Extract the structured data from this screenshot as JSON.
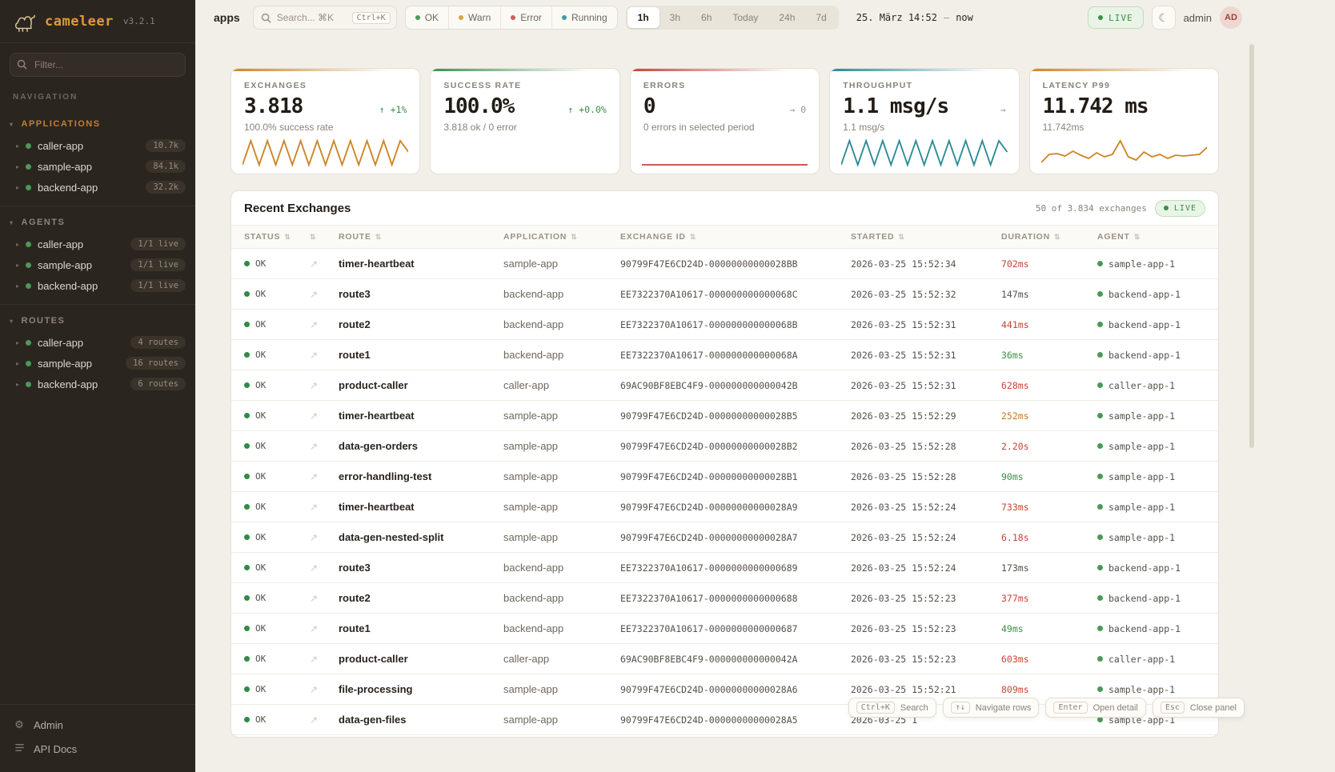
{
  "sidebar": {
    "logo": {
      "name": "cameleer",
      "version": "v3.2.1"
    },
    "filter_placeholder": "Filter...",
    "nav_label": "NAVIGATION",
    "sections": [
      {
        "label": "APPLICATIONS",
        "color": "#c08033",
        "items": [
          {
            "name": "caller-app",
            "badge": "10.7k"
          },
          {
            "name": "sample-app",
            "badge": "84.1k"
          },
          {
            "name": "backend-app",
            "badge": "32.2k"
          }
        ]
      },
      {
        "label": "AGENTS",
        "color": "#8d8479",
        "items": [
          {
            "name": "caller-app",
            "badge": "1/1 live"
          },
          {
            "name": "sample-app",
            "badge": "1/1 live"
          },
          {
            "name": "backend-app",
            "badge": "1/1 live"
          }
        ]
      },
      {
        "label": "ROUTES",
        "color": "#8d8479",
        "items": [
          {
            "name": "caller-app",
            "badge": "4 routes"
          },
          {
            "name": "sample-app",
            "badge": "16 routes"
          },
          {
            "name": "backend-app",
            "badge": "6 routes"
          }
        ]
      }
    ],
    "footer": [
      {
        "label": "Admin",
        "icon": "gear-icon"
      },
      {
        "label": "API Docs",
        "icon": "docs-icon"
      }
    ]
  },
  "topbar": {
    "title": "apps",
    "search": {
      "placeholder": "Search... ⌘K",
      "kbd": "Ctrl+K"
    },
    "status_filters": [
      {
        "label": "OK",
        "color": "#4a9a57"
      },
      {
        "label": "Warn",
        "color": "#d9a441"
      },
      {
        "label": "Error",
        "color": "#cc5f54"
      },
      {
        "label": "Running",
        "color": "#3f9ba8"
      }
    ],
    "time_ranges": [
      "1h",
      "3h",
      "6h",
      "Today",
      "24h",
      "7d"
    ],
    "active_range": "1h",
    "time_from": "25. März 14:52",
    "time_sep": "—",
    "time_to": "now",
    "live_label": "LIVE",
    "user": "admin",
    "avatar": "AD"
  },
  "cards": [
    {
      "label": "EXCHANGES",
      "value": "3.818",
      "delta": "↑ +1%",
      "delta_color": "green",
      "subtitle": "100.0% success rate",
      "accent": "#cd8425",
      "spark_color": "#cd8425",
      "spark": [
        34,
        4,
        34,
        4,
        34,
        4,
        34,
        4,
        34,
        4,
        34,
        4,
        34,
        4,
        34,
        4,
        34,
        4,
        34,
        4,
        18
      ]
    },
    {
      "label": "SUCCESS RATE",
      "value": "100.0%",
      "delta": "↑ +0.0%",
      "delta_color": "green",
      "subtitle": "3.818 ok / 0 error",
      "accent": "#3f8f4f",
      "spark_color": "",
      "spark": []
    },
    {
      "label": "ERRORS",
      "value": "0",
      "delta": "→ 0",
      "delta_color": "gray",
      "subtitle": "0 errors in selected period",
      "accent": "#c44536",
      "spark_color": "#c44536",
      "spark": [
        34,
        34
      ]
    },
    {
      "label": "THROUGHPUT",
      "value": "1.1 msg/s",
      "delta": "→",
      "delta_color": "gray",
      "subtitle": "1.1 msg/s",
      "accent": "#2a8a96",
      "spark_color": "#2a8a96",
      "spark": [
        34,
        4,
        34,
        4,
        34,
        4,
        34,
        4,
        34,
        4,
        34,
        4,
        34,
        4,
        34,
        4,
        34,
        4,
        34,
        4,
        18
      ]
    },
    {
      "label": "LATENCY P99",
      "value": "11.742 ms",
      "delta": "",
      "delta_color": "gray",
      "subtitle": "11.742ms",
      "accent": "#cd8425",
      "spark_color": "#cd8425",
      "spark": [
        31,
        21,
        20,
        23,
        17,
        22,
        26,
        19,
        24,
        21,
        4,
        24,
        28,
        18,
        24,
        21,
        26,
        22,
        23,
        22,
        21,
        12
      ]
    }
  ],
  "table": {
    "title": "Recent Exchanges",
    "meta": "50 of 3.834 exchanges",
    "live_label": "LIVE",
    "columns": [
      "STATUS",
      "",
      "ROUTE",
      "APPLICATION",
      "EXCHANGE ID",
      "STARTED",
      "DURATION",
      "AGENT"
    ],
    "rows": [
      {
        "status": "OK",
        "route": "timer-heartbeat",
        "application": "sample-app",
        "exchange_id": "90799F47E6CD24D-00000000000028BB",
        "started": "2026-03-25 15:52:34",
        "duration": "702ms",
        "duration_color": "red",
        "agent": "sample-app-1"
      },
      {
        "status": "OK",
        "route": "route3",
        "application": "backend-app",
        "exchange_id": "EE7322370A10617-000000000000068C",
        "started": "2026-03-25 15:52:32",
        "duration": "147ms",
        "duration_color": "neutral",
        "agent": "backend-app-1"
      },
      {
        "status": "OK",
        "route": "route2",
        "application": "backend-app",
        "exchange_id": "EE7322370A10617-000000000000068B",
        "started": "2026-03-25 15:52:31",
        "duration": "441ms",
        "duration_color": "red",
        "agent": "backend-app-1"
      },
      {
        "status": "OK",
        "route": "route1",
        "application": "backend-app",
        "exchange_id": "EE7322370A10617-000000000000068A",
        "started": "2026-03-25 15:52:31",
        "duration": "36ms",
        "duration_color": "green",
        "agent": "backend-app-1"
      },
      {
        "status": "OK",
        "route": "product-caller",
        "application": "caller-app",
        "exchange_id": "69AC90BF8EBC4F9-000000000000042B",
        "started": "2026-03-25 15:52:31",
        "duration": "628ms",
        "duration_color": "red",
        "agent": "caller-app-1"
      },
      {
        "status": "OK",
        "route": "timer-heartbeat",
        "application": "sample-app",
        "exchange_id": "90799F47E6CD24D-00000000000028B5",
        "started": "2026-03-25 15:52:29",
        "duration": "252ms",
        "duration_color": "amber",
        "agent": "sample-app-1"
      },
      {
        "status": "OK",
        "route": "data-gen-orders",
        "application": "sample-app",
        "exchange_id": "90799F47E6CD24D-00000000000028B2",
        "started": "2026-03-25 15:52:28",
        "duration": "2.20s",
        "duration_color": "red",
        "agent": "sample-app-1"
      },
      {
        "status": "OK",
        "route": "error-handling-test",
        "application": "sample-app",
        "exchange_id": "90799F47E6CD24D-00000000000028B1",
        "started": "2026-03-25 15:52:28",
        "duration": "90ms",
        "duration_color": "green",
        "agent": "sample-app-1"
      },
      {
        "status": "OK",
        "route": "timer-heartbeat",
        "application": "sample-app",
        "exchange_id": "90799F47E6CD24D-00000000000028A9",
        "started": "2026-03-25 15:52:24",
        "duration": "733ms",
        "duration_color": "red",
        "agent": "sample-app-1"
      },
      {
        "status": "OK",
        "route": "data-gen-nested-split",
        "application": "sample-app",
        "exchange_id": "90799F47E6CD24D-00000000000028A7",
        "started": "2026-03-25 15:52:24",
        "duration": "6.18s",
        "duration_color": "red",
        "agent": "sample-app-1"
      },
      {
        "status": "OK",
        "route": "route3",
        "application": "backend-app",
        "exchange_id": "EE7322370A10617-0000000000000689",
        "started": "2026-03-25 15:52:24",
        "duration": "173ms",
        "duration_color": "neutral",
        "agent": "backend-app-1"
      },
      {
        "status": "OK",
        "route": "route2",
        "application": "backend-app",
        "exchange_id": "EE7322370A10617-0000000000000688",
        "started": "2026-03-25 15:52:23",
        "duration": "377ms",
        "duration_color": "red",
        "agent": "backend-app-1"
      },
      {
        "status": "OK",
        "route": "route1",
        "application": "backend-app",
        "exchange_id": "EE7322370A10617-0000000000000687",
        "started": "2026-03-25 15:52:23",
        "duration": "49ms",
        "duration_color": "green",
        "agent": "backend-app-1"
      },
      {
        "status": "OK",
        "route": "product-caller",
        "application": "caller-app",
        "exchange_id": "69AC90BF8EBC4F9-000000000000042A",
        "started": "2026-03-25 15:52:23",
        "duration": "603ms",
        "duration_color": "red",
        "agent": "caller-app-1"
      },
      {
        "status": "OK",
        "route": "file-processing",
        "application": "sample-app",
        "exchange_id": "90799F47E6CD24D-00000000000028A6",
        "started": "2026-03-25 15:52:21",
        "duration": "809ms",
        "duration_color": "red",
        "agent": "sample-app-1"
      },
      {
        "status": "OK",
        "route": "data-gen-files",
        "application": "sample-app",
        "exchange_id": "90799F47E6CD24D-00000000000028A5",
        "started": "2026-03-25 1",
        "duration": "",
        "duration_color": "neutral",
        "agent": "sample-app-1"
      }
    ]
  },
  "hints": [
    {
      "kbd": "Ctrl+K",
      "label": "Search"
    },
    {
      "kbd": "↑↓",
      "label": "Navigate rows"
    },
    {
      "kbd": "Enter",
      "label": "Open detail"
    },
    {
      "kbd": "Esc",
      "label": "Close panel"
    }
  ]
}
